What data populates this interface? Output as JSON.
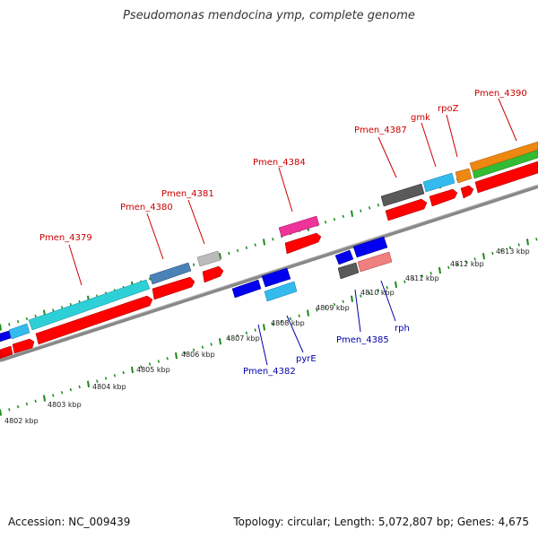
{
  "title": "Pseudomonas mendocina ymp, complete genome",
  "footer": {
    "accession": "Accession: NC_009439",
    "summary": "Topology: circular; Length: 5,072,807 bp; Genes: 4,675"
  },
  "scale_labels": [
    "4802 kbp",
    "4803 kbp",
    "4804 kbp",
    "4805 kbp",
    "4806 kbp",
    "4807 kbp",
    "4808 kbp",
    "4809 kbp",
    "4810 kbp",
    "4811 kbp",
    "4812 kbp",
    "4813 kbp"
  ],
  "top_labels": [
    "Pmen_4379",
    "Pmen_4380",
    "Pmen_4381",
    "Pmen_4384",
    "Pmen_4387",
    "gmk",
    "rpoZ",
    "Pmen_4390"
  ],
  "bottom_labels": [
    "Pmen_4382",
    "pyrE",
    "Pmen_4385",
    "rph"
  ],
  "colors": {
    "cds": "#ff0000",
    "cds_reverse": "#0000ee",
    "backbone": "#888888",
    "tick": "#1a8a1a",
    "label_top": "#cc0000",
    "label_bottom": "#0000aa",
    "cyan": "#2ed0d8",
    "light_blue": "#33bbee",
    "steel_blue": "#4a82b8",
    "grey": "#bbbbbb",
    "dark_grey": "#5a5a5a",
    "pink": "#ee3399",
    "salmon": "#f08080",
    "orange": "#ee8811",
    "green": "#33bb33"
  }
}
